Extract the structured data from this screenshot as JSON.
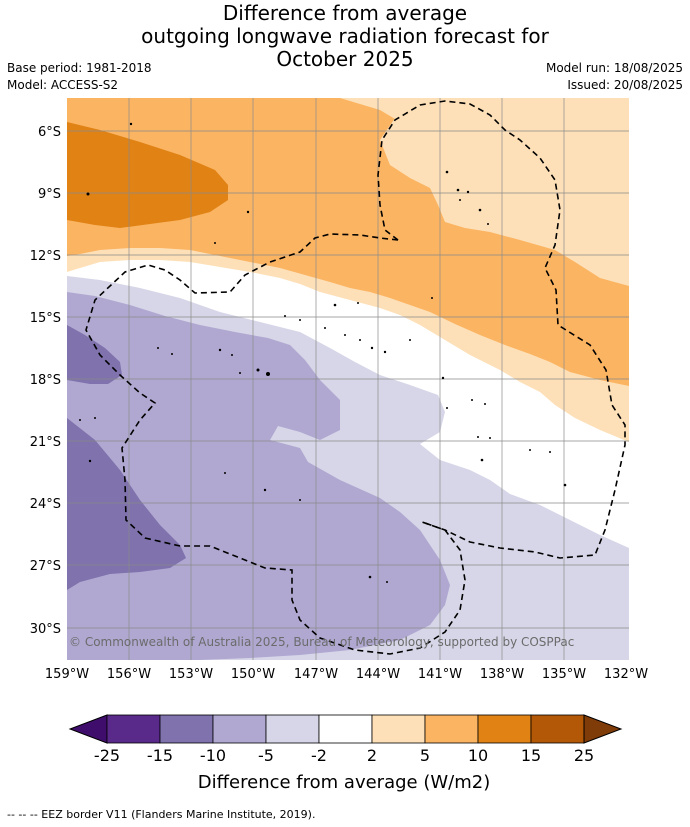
{
  "title_lines": [
    "Difference from average",
    "outgoing longwave radiation forecast for",
    "October 2025"
  ],
  "base_period": "Base period: 1981-2018",
  "model": "Model: ACCESS-S2",
  "model_run": "Model run: 18/08/2025",
  "issued": "Issued: 20/08/2025",
  "copyright": "© Commonwealth of Australia 2025, Bureau of Meteorology, supported by COSPPac",
  "lat_labels": [
    "6°S",
    "9°S",
    "12°S",
    "15°S",
    "18°S",
    "21°S",
    "24°S",
    "27°S",
    "30°S"
  ],
  "lon_labels": [
    "159°W",
    "156°W",
    "153°W",
    "150°W",
    "147°W",
    "144°W",
    "141°W",
    "138°W",
    "135°W",
    "132°W"
  ],
  "colorbar": {
    "title": "Difference from average (W/m2)",
    "ticks": [
      "-25",
      "-15",
      "-10",
      "-5",
      "-2",
      "2",
      "5",
      "10",
      "15",
      "25"
    ],
    "colors": [
      "#3f0d6b",
      "#5a2a8a",
      "#7f72ad",
      "#b0a8d1",
      "#d6d6e8",
      "#ffffff",
      "#fde0b8",
      "#fbb462",
      "#e08214",
      "#b35806",
      "#7f3b08"
    ]
  },
  "footer": "-- -- -- EEZ border V11 (Flanders Marine Institute, 2019)."
}
